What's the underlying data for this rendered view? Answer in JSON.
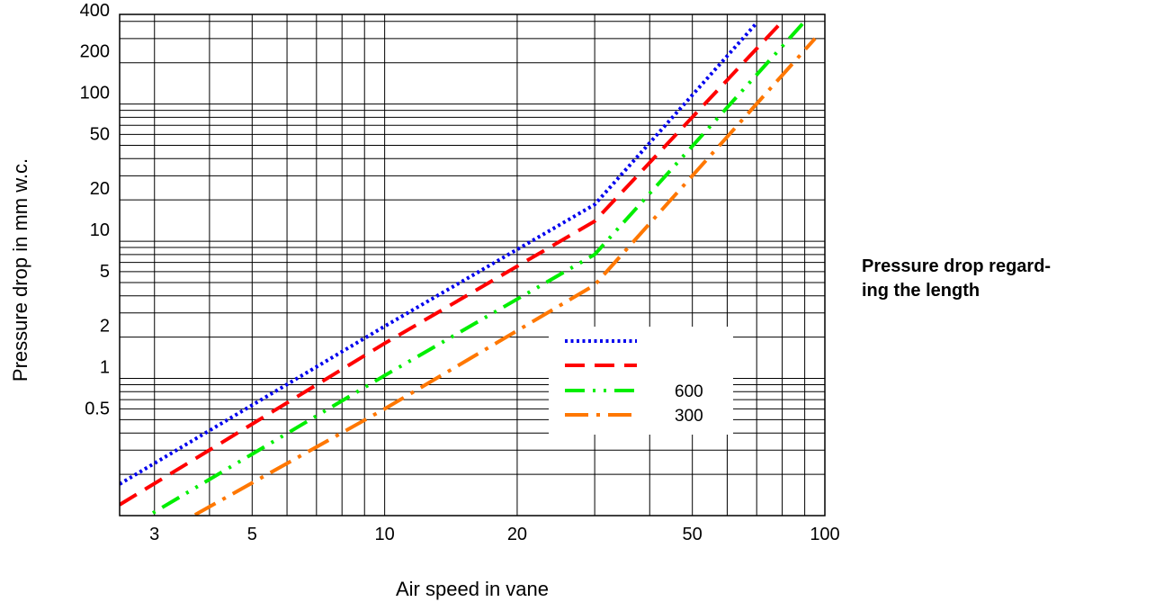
{
  "side_title": {
    "line1": "Pressure drop regard-",
    "line2": "ing the length"
  },
  "chart_data": {
    "type": "line",
    "title": "",
    "xlabel": "Air speed in vane",
    "ylabel": "Pressure drop in mm w.c.",
    "x_scale": "log",
    "y_scale": "log",
    "xlim": [
      2.5,
      100
    ],
    "ylim": [
      0.1,
      450
    ],
    "grid": true,
    "legend_position": "bottom-right",
    "x_ticks": [
      {
        "value": 3,
        "label": "3"
      },
      {
        "value": 5,
        "label": "5"
      },
      {
        "value": 10,
        "label": "10"
      },
      {
        "value": 20,
        "label": "20"
      },
      {
        "value": 50,
        "label": "50"
      },
      {
        "value": 100,
        "label": "100"
      }
    ],
    "y_ticks": [
      {
        "value": 0.5,
        "label": "0.5"
      },
      {
        "value": 1,
        "label": "1"
      },
      {
        "value": 2,
        "label": "2"
      },
      {
        "value": 5,
        "label": "5"
      },
      {
        "value": 10,
        "label": "10"
      },
      {
        "value": 20,
        "label": "20"
      },
      {
        "value": 50,
        "label": "50"
      },
      {
        "value": 100,
        "label": "100"
      },
      {
        "value": 200,
        "label": "200"
      },
      {
        "value": 400,
        "label": "400"
      }
    ],
    "series": [
      {
        "label": "",
        "color": "#0000ee",
        "dash": "dot",
        "x": [
          2.5,
          10,
          30,
          70
        ],
        "y": [
          0.17,
          2.4,
          18.5,
          390
        ]
      },
      {
        "label": "",
        "color": "#ff0000",
        "dash": "dash",
        "x": [
          2.5,
          10,
          30,
          80
        ],
        "y": [
          0.12,
          1.8,
          14,
          400
        ]
      },
      {
        "label": "600",
        "color": "#00ee00",
        "dash": "dash-dot-dot",
        "x": [
          2.5,
          10,
          30,
          90
        ],
        "y": [
          0.075,
          1.05,
          8,
          400
        ]
      },
      {
        "label": "300",
        "color": "#ff7700",
        "dash": "dash-dot",
        "x": [
          2.5,
          10,
          30,
          95
        ],
        "y": [
          0.05,
          0.6,
          4.8,
          300
        ]
      }
    ]
  }
}
